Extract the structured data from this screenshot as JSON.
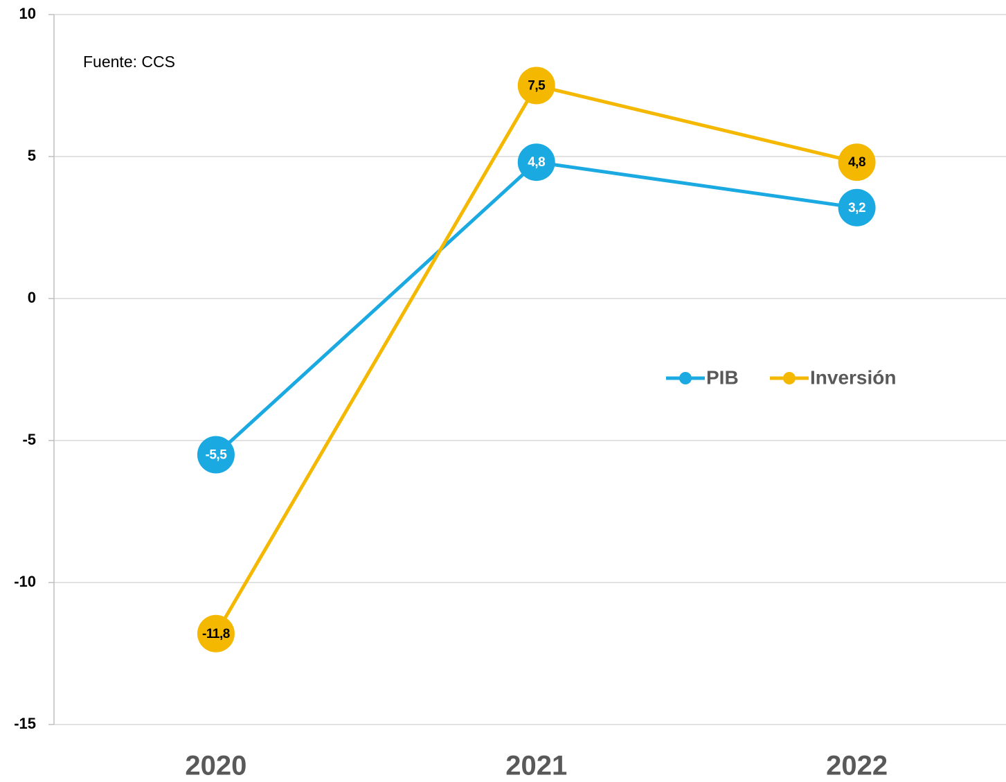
{
  "chart_data": {
    "type": "line",
    "annotation": "Fuente: CCS",
    "categories": [
      "2020",
      "2021",
      "2022"
    ],
    "series": [
      {
        "name": "PIB",
        "color": "#1aa9e1",
        "label_color": "#ffffff",
        "values": [
          -5.5,
          4.8,
          3.2
        ],
        "value_labels": [
          "-5,5",
          "4,8",
          "3,2"
        ]
      },
      {
        "name": "Inversión",
        "color": "#f5b800",
        "label_color": "#000000",
        "values": [
          -11.8,
          7.5,
          4.8
        ],
        "value_labels": [
          "-11,8",
          "7,5",
          "4,8"
        ]
      }
    ],
    "ylim": [
      -15,
      10
    ],
    "yticks": [
      -15,
      -10,
      -5,
      0,
      5,
      10
    ],
    "grid": true
  }
}
